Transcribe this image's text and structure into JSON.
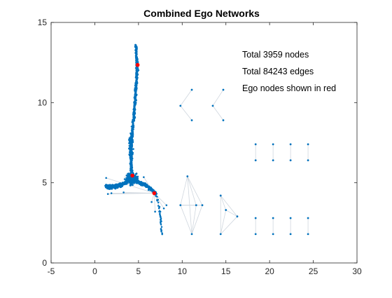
{
  "chart_data": {
    "type": "scatter",
    "title": "Combined Ego Networks",
    "xlabel": "",
    "ylabel": "",
    "xlim": [
      -5,
      30
    ],
    "ylim": [
      0,
      15
    ],
    "xticks": [
      "-5",
      "0",
      "5",
      "10",
      "15",
      "20",
      "25",
      "30"
    ],
    "yticks": [
      "0",
      "5",
      "10",
      "15"
    ],
    "grid": false,
    "box": true,
    "annotations": [
      "Total 3959 nodes",
      "Total 84243 edges",
      "Ego nodes shown in red"
    ],
    "colors": {
      "node": "#0072BD",
      "ego": "#FF0000",
      "edge": "#cfd6de",
      "axis": "#262626"
    },
    "ego_nodes": [
      [
        4.9,
        12.35
      ],
      [
        4.3,
        5.45
      ],
      [
        6.8,
        4.35
      ]
    ],
    "main_component": {
      "stem_points": [
        [
          4.7,
          13.6
        ],
        [
          4.75,
          12.9
        ],
        [
          4.85,
          12.3
        ],
        [
          4.8,
          11.5
        ],
        [
          4.7,
          10.8
        ],
        [
          4.6,
          10.1
        ],
        [
          4.5,
          9.3
        ],
        [
          4.35,
          8.5
        ],
        [
          4.2,
          7.7
        ],
        [
          4.1,
          6.9
        ],
        [
          4.15,
          6.2
        ],
        [
          4.2,
          5.6
        ]
      ],
      "left_arm_points": [
        [
          1.2,
          4.8
        ],
        [
          1.6,
          4.7
        ],
        [
          2.0,
          4.75
        ],
        [
          2.5,
          4.8
        ],
        [
          3.0,
          4.85
        ],
        [
          3.5,
          5.0
        ],
        [
          3.9,
          5.2
        ]
      ],
      "right_arm_points": [
        [
          4.6,
          5.2
        ],
        [
          5.1,
          5.0
        ],
        [
          5.6,
          4.9
        ],
        [
          6.1,
          4.75
        ],
        [
          6.6,
          4.5
        ],
        [
          7.0,
          4.3
        ]
      ],
      "tail_points": [
        [
          7.0,
          4.3
        ],
        [
          7.3,
          3.6
        ],
        [
          7.5,
          2.9
        ],
        [
          7.6,
          2.4
        ],
        [
          7.7,
          1.8
        ]
      ],
      "outliers": [
        [
          1.3,
          5.3
        ],
        [
          1.5,
          4.3
        ],
        [
          1.9,
          4.35
        ],
        [
          3.3,
          4.4
        ],
        [
          5.6,
          5.35
        ],
        [
          6.5,
          3.8
        ],
        [
          6.9,
          3.2
        ],
        [
          7.4,
          3.5
        ],
        [
          7.9,
          3.4
        ],
        [
          8.2,
          3.6
        ]
      ]
    },
    "small_components": [
      {
        "nodes": [
          [
            9.8,
            9.8
          ],
          [
            11.1,
            10.8
          ],
          [
            11.1,
            8.9
          ]
        ],
        "edges": [
          [
            0,
            1
          ],
          [
            0,
            2
          ]
        ]
      },
      {
        "nodes": [
          [
            13.5,
            9.8
          ],
          [
            14.7,
            10.8
          ],
          [
            14.7,
            8.9
          ]
        ],
        "edges": [
          [
            0,
            1
          ],
          [
            0,
            2
          ]
        ]
      },
      {
        "nodes": [
          [
            9.8,
            3.6
          ],
          [
            10.6,
            5.4
          ],
          [
            11.1,
            1.8
          ],
          [
            11.6,
            3.6
          ],
          [
            12.3,
            3.6
          ]
        ],
        "edges": [
          [
            0,
            1
          ],
          [
            0,
            2
          ],
          [
            0,
            3
          ],
          [
            0,
            4
          ],
          [
            1,
            3
          ],
          [
            1,
            4
          ],
          [
            2,
            3
          ],
          [
            2,
            4
          ],
          [
            1,
            2
          ]
        ]
      },
      {
        "nodes": [
          [
            14.4,
            4.2
          ],
          [
            15.0,
            3.3
          ],
          [
            14.4,
            1.8
          ],
          [
            16.3,
            2.9
          ]
        ],
        "edges": [
          [
            0,
            1
          ],
          [
            0,
            2
          ],
          [
            1,
            2
          ],
          [
            1,
            3
          ],
          [
            0,
            3
          ],
          [
            2,
            3
          ]
        ]
      },
      {
        "nodes": [
          [
            18.4,
            7.4
          ],
          [
            18.4,
            6.4
          ]
        ],
        "edges": [
          [
            0,
            1
          ]
        ]
      },
      {
        "nodes": [
          [
            20.4,
            7.4
          ],
          [
            20.4,
            6.4
          ]
        ],
        "edges": [
          [
            0,
            1
          ]
        ]
      },
      {
        "nodes": [
          [
            22.4,
            7.4
          ],
          [
            22.4,
            6.4
          ]
        ],
        "edges": [
          [
            0,
            1
          ]
        ]
      },
      {
        "nodes": [
          [
            24.4,
            7.4
          ],
          [
            24.4,
            6.4
          ]
        ],
        "edges": [
          [
            0,
            1
          ]
        ]
      },
      {
        "nodes": [
          [
            18.4,
            2.8
          ],
          [
            18.4,
            1.8
          ]
        ],
        "edges": [
          [
            0,
            1
          ]
        ]
      },
      {
        "nodes": [
          [
            20.4,
            2.8
          ],
          [
            20.4,
            1.8
          ]
        ],
        "edges": [
          [
            0,
            1
          ]
        ]
      },
      {
        "nodes": [
          [
            22.4,
            2.8
          ],
          [
            22.4,
            1.8
          ]
        ],
        "edges": [
          [
            0,
            1
          ]
        ]
      },
      {
        "nodes": [
          [
            24.4,
            2.8
          ],
          [
            24.4,
            1.8
          ]
        ],
        "edges": [
          [
            0,
            1
          ]
        ]
      }
    ]
  }
}
